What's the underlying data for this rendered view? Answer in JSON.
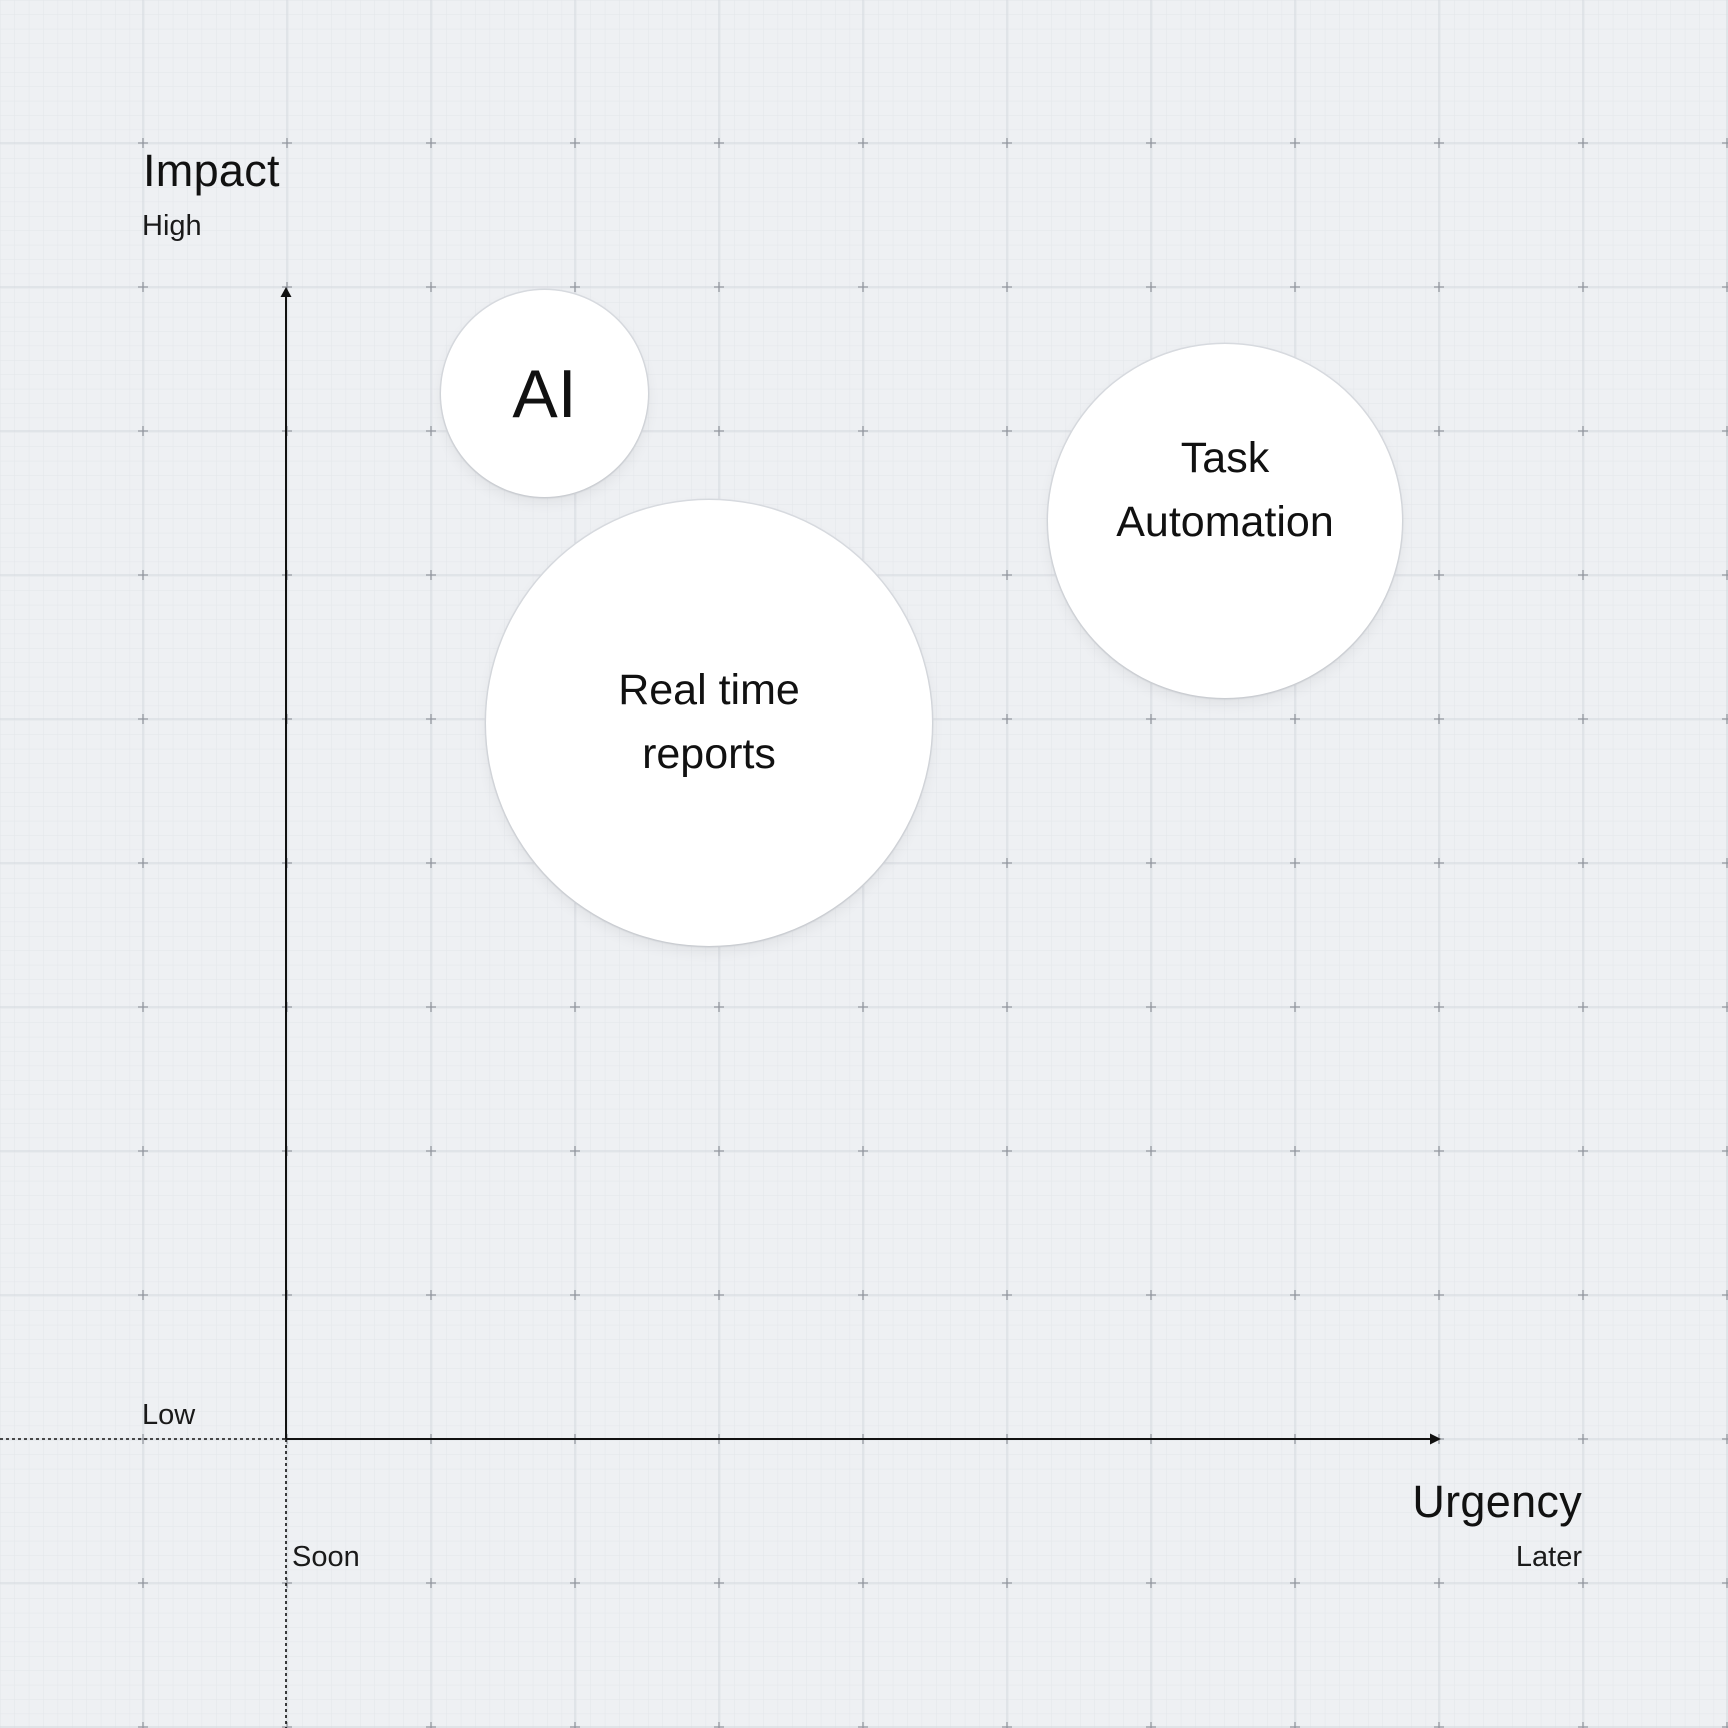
{
  "y_axis": {
    "title": "Impact",
    "high_label": "High",
    "low_label": "Low"
  },
  "x_axis": {
    "title": "Urgency",
    "start_label": "Soon",
    "end_label": "Later"
  },
  "bubbles": [
    {
      "id": "ai",
      "label": "AI"
    },
    {
      "id": "task-automation",
      "label": "Task\nAutomation"
    },
    {
      "id": "real-time-reports",
      "label": "Real time\nreports"
    }
  ],
  "colors": {
    "background": "#eef0f3",
    "grid_major": "#d3d7dd",
    "grid_minor": "#e3e6ea",
    "axis": "#111111",
    "bubble_fill": "#ffffff"
  }
}
